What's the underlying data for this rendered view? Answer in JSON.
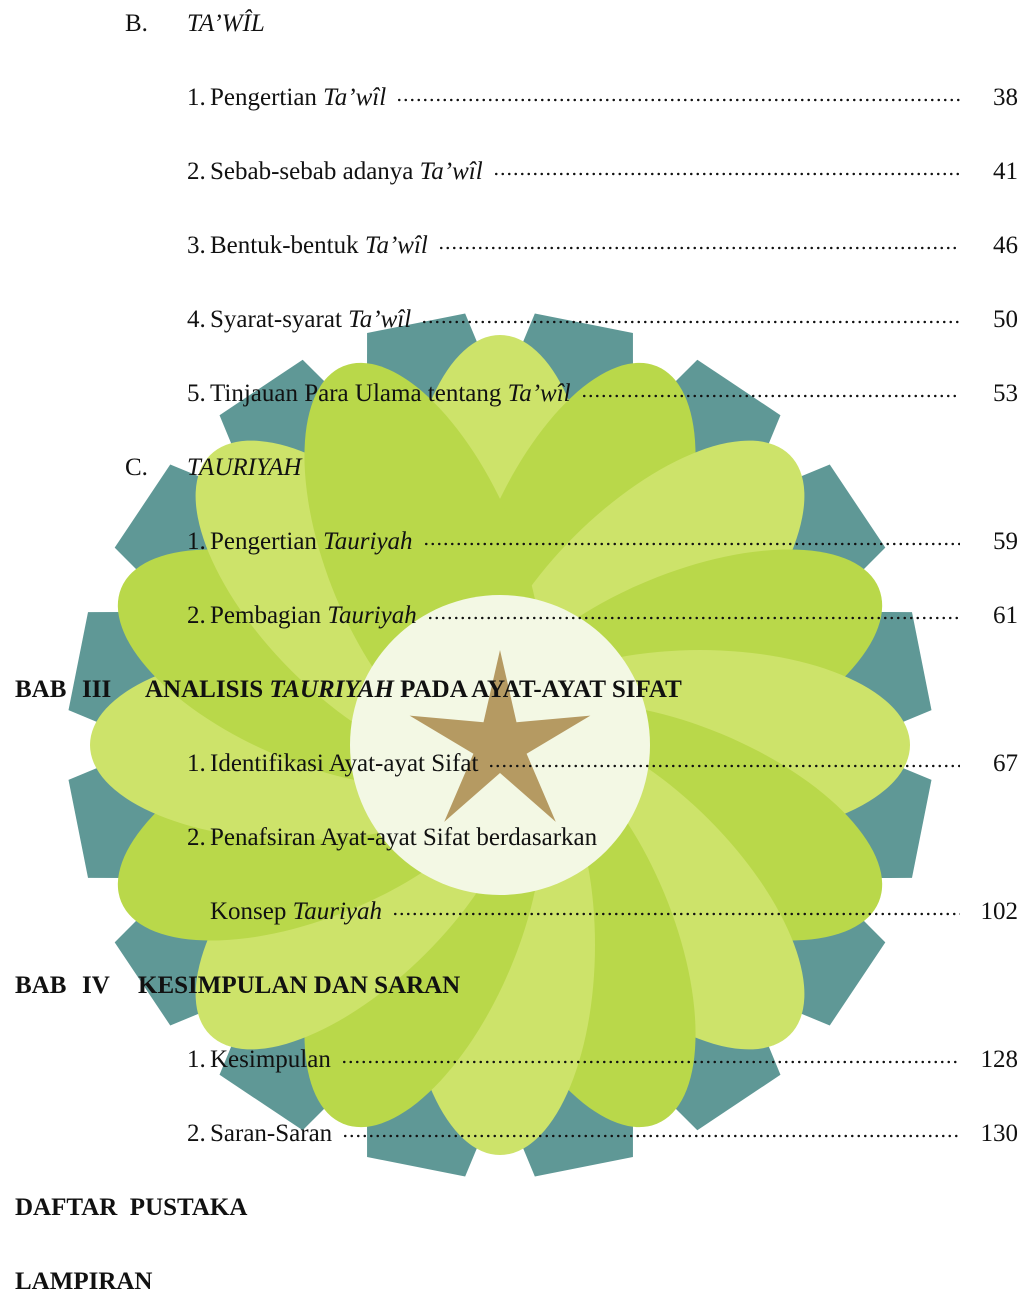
{
  "entries": [
    {
      "kind": "section",
      "number": "B.",
      "text": [
        {
          "t": "TA’WÎL",
          "italic": true
        }
      ]
    },
    {
      "kind": "item",
      "number": "1.",
      "text": [
        {
          "t": "Pengertian "
        },
        {
          "t": "Ta’wîl",
          "italic": true
        }
      ],
      "page": 38
    },
    {
      "kind": "item",
      "number": "2.",
      "text": [
        {
          "t": "Sebab-sebab adanya "
        },
        {
          "t": "Ta’wîl",
          "italic": true
        }
      ],
      "page": 41
    },
    {
      "kind": "item",
      "number": "3.",
      "text": [
        {
          "t": "Bentuk-bentuk "
        },
        {
          "t": "Ta’wîl",
          "italic": true
        }
      ],
      "page": 46
    },
    {
      "kind": "item",
      "number": "4.",
      "text": [
        {
          "t": "Syarat-syarat "
        },
        {
          "t": "Ta’wîl",
          "italic": true
        }
      ],
      "page": 50
    },
    {
      "kind": "item",
      "number": "5.",
      "text": [
        {
          "t": "Tinjauan Para Ulama tentang "
        },
        {
          "t": "Ta’wîl",
          "italic": true
        }
      ],
      "page": 53
    },
    {
      "kind": "section",
      "number": "C.",
      "text": [
        {
          "t": "TAURIYAH",
          "italic": true
        }
      ]
    },
    {
      "kind": "item",
      "number": "1.",
      "text": [
        {
          "t": "Pengertian "
        },
        {
          "t": "Tauriyah",
          "italic": true
        }
      ],
      "page": 59
    },
    {
      "kind": "item",
      "number": "2.",
      "text": [
        {
          "t": "Pembagian "
        },
        {
          "t": "Tauriyah",
          "italic": true
        }
      ],
      "page": 61
    },
    {
      "kind": "chapter",
      "label": "BAB",
      "number": "III",
      "text": [
        {
          "t": "ANALISIS "
        },
        {
          "t": "TAURIYAH",
          "italic": true
        },
        {
          "t": " PADA AYAT-AYAT SIFAT"
        }
      ]
    },
    {
      "kind": "item",
      "number": "1.",
      "text": [
        {
          "t": "Identifikasi Ayat-ayat Sifat"
        }
      ],
      "page": 67
    },
    {
      "kind": "item",
      "number": "2.",
      "text": [
        {
          "t": "Penafsiran Ayat-ayat Sifat berdasarkan"
        }
      ]
    },
    {
      "kind": "continuation",
      "text": [
        {
          "t": "Konsep "
        },
        {
          "t": "Tauriyah",
          "italic": true
        }
      ],
      "page": 102
    },
    {
      "kind": "chapter",
      "label": "BAB",
      "number": "IV",
      "text": [
        {
          "t": "KESIMPULAN DAN SARAN"
        }
      ]
    },
    {
      "kind": "item",
      "number": "1.",
      "text": [
        {
          "t": "Kesimpulan"
        }
      ],
      "page": 128
    },
    {
      "kind": "item",
      "number": "2.",
      "text": [
        {
          "t": "Saran-Saran"
        }
      ],
      "page": 130
    },
    {
      "kind": "heading",
      "text": [
        {
          "t": "DAFTAR  PUSTAKA"
        }
      ]
    },
    {
      "kind": "heading",
      "text": [
        {
          "t": "LAMPIRAN"
        }
      ]
    }
  ]
}
